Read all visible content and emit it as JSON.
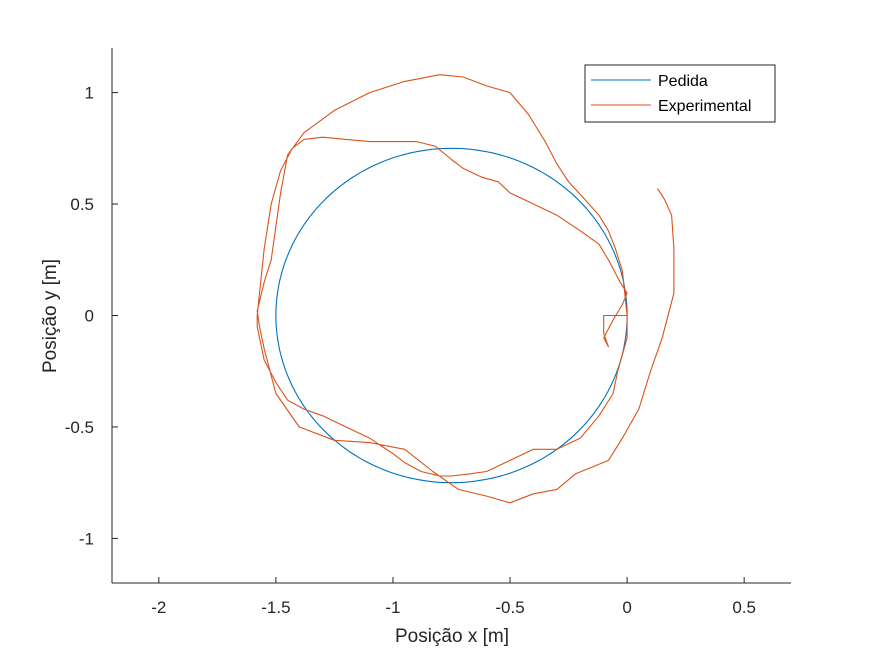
{
  "chart_data": {
    "type": "line",
    "title": "",
    "xlabel": "Posição x [m]",
    "ylabel": "Posição y [m]",
    "xlim": [
      -2.2,
      0.7
    ],
    "ylim": [
      -1.2,
      1.2
    ],
    "xticks": [
      -2,
      -1.5,
      -1,
      -0.5,
      0,
      0.5
    ],
    "xtick_labels": [
      "-2",
      "-1.5",
      "-1",
      "-0.5",
      "0",
      "0.5"
    ],
    "yticks": [
      -1,
      -0.5,
      0,
      0.5,
      1
    ],
    "ytick_labels": [
      "-1",
      "-0.5",
      "0",
      "0.5",
      "1"
    ],
    "grid": false,
    "legend_position": "top-right",
    "series": [
      {
        "name": "Pedida",
        "color": "#0072BD",
        "style": "circle",
        "center": [
          -0.75,
          0
        ],
        "radius": 0.75
      },
      {
        "name": "Experimental",
        "color": "#D95319",
        "x": [
          0,
          -0.02,
          -0.1,
          -0.1,
          -0.08,
          -0.1,
          -0.06,
          -0.02,
          0.0,
          -0.03,
          -0.08,
          -0.12,
          -0.2,
          -0.3,
          -0.4,
          -0.5,
          -0.55,
          -0.62,
          -0.7,
          -0.75,
          -0.82,
          -0.9,
          -1.0,
          -1.1,
          -1.2,
          -1.3,
          -1.38,
          -1.43,
          -1.48,
          -1.52,
          -1.55,
          -1.57,
          -1.58,
          -1.58,
          -1.57,
          -1.55,
          -1.5,
          -1.45,
          -1.38,
          -1.3,
          -1.2,
          -1.1,
          -1.0,
          -0.95,
          -0.88,
          -0.8,
          -0.75,
          -0.67,
          -0.6,
          -0.5,
          -0.4,
          -0.3,
          -0.2,
          -0.12,
          -0.06,
          -0.04,
          0.0,
          0.0,
          -0.02,
          -0.05,
          -0.08,
          -0.12,
          -0.18,
          -0.25,
          -0.3,
          -0.35,
          -0.42,
          -0.5,
          -0.6,
          -0.7,
          -0.8,
          -0.95,
          -1.1,
          -1.25,
          -1.38,
          -1.45,
          -1.48,
          -1.5,
          -1.52,
          -1.55,
          -1.58,
          -1.57,
          -1.55,
          -1.5,
          -1.4,
          -1.25,
          -1.1,
          -0.95,
          -0.83,
          -0.72,
          -0.6,
          -0.5,
          -0.4,
          -0.3,
          -0.22,
          -0.15,
          -0.08,
          -0.02,
          0.05,
          0.1,
          0.15,
          0.2,
          0.2,
          0.19,
          0.16,
          0.13
        ],
        "y": [
          0,
          0.0,
          0.0,
          -0.08,
          -0.14,
          -0.1,
          -0.02,
          0.05,
          0.1,
          0.15,
          0.25,
          0.32,
          0.38,
          0.45,
          0.5,
          0.55,
          0.6,
          0.62,
          0.66,
          0.7,
          0.76,
          0.78,
          0.78,
          0.78,
          0.79,
          0.8,
          0.79,
          0.75,
          0.65,
          0.5,
          0.3,
          0.1,
          0.0,
          -0.05,
          -0.1,
          -0.2,
          -0.3,
          -0.38,
          -0.42,
          -0.45,
          -0.5,
          -0.55,
          -0.62,
          -0.66,
          -0.7,
          -0.72,
          -0.72,
          -0.71,
          -0.7,
          -0.65,
          -0.6,
          -0.6,
          -0.55,
          -0.45,
          -0.35,
          -0.25,
          -0.1,
          0.0,
          0.2,
          0.3,
          0.38,
          0.45,
          0.52,
          0.6,
          0.68,
          0.78,
          0.9,
          1.0,
          1.03,
          1.07,
          1.08,
          1.05,
          1.0,
          0.92,
          0.82,
          0.72,
          0.55,
          0.4,
          0.25,
          0.15,
          0.02,
          -0.05,
          -0.15,
          -0.35,
          -0.5,
          -0.56,
          -0.57,
          -0.6,
          -0.7,
          -0.78,
          -0.81,
          -0.84,
          -0.8,
          -0.78,
          -0.71,
          -0.68,
          -0.65,
          -0.55,
          -0.42,
          -0.25,
          -0.1,
          0.1,
          0.3,
          0.45,
          0.52,
          0.57
        ]
      }
    ]
  }
}
